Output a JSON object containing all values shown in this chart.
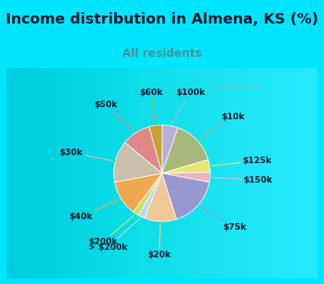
{
  "title": "Income distribution in Almena, KS (%)",
  "subtitle": "All residents",
  "slices": [
    {
      "label": "$100k",
      "value": 5,
      "color": "#b8b0d8"
    },
    {
      "label": "$10k",
      "value": 14,
      "color": "#a8b87c"
    },
    {
      "label": "$125k",
      "value": 4,
      "color": "#e8e870"
    },
    {
      "label": "$150k",
      "value": 3,
      "color": "#f0b0c0"
    },
    {
      "label": "$75k",
      "value": 16,
      "color": "#9898d0"
    },
    {
      "label": "$20k",
      "value": 10,
      "color": "#f0c898"
    },
    {
      "label": "> $200k",
      "value": 2,
      "color": "#b8d8f0"
    },
    {
      "label": "$200k",
      "value": 2,
      "color": "#c8e060"
    },
    {
      "label": "$40k",
      "value": 11,
      "color": "#f0a850"
    },
    {
      "label": "$30k",
      "value": 13,
      "color": "#c8c0a8"
    },
    {
      "label": "$50k",
      "value": 9,
      "color": "#e08888"
    },
    {
      "label": "$60k",
      "value": 4,
      "color": "#c8a030"
    }
  ],
  "background_color": "#00e5ff",
  "chart_bg_color": "#e0f0e8",
  "title_fontsize": 13,
  "subtitle_fontsize": 10,
  "subtitle_color": "#4a9090",
  "watermark": "City-Data.com",
  "label_fontsize": 7.5
}
